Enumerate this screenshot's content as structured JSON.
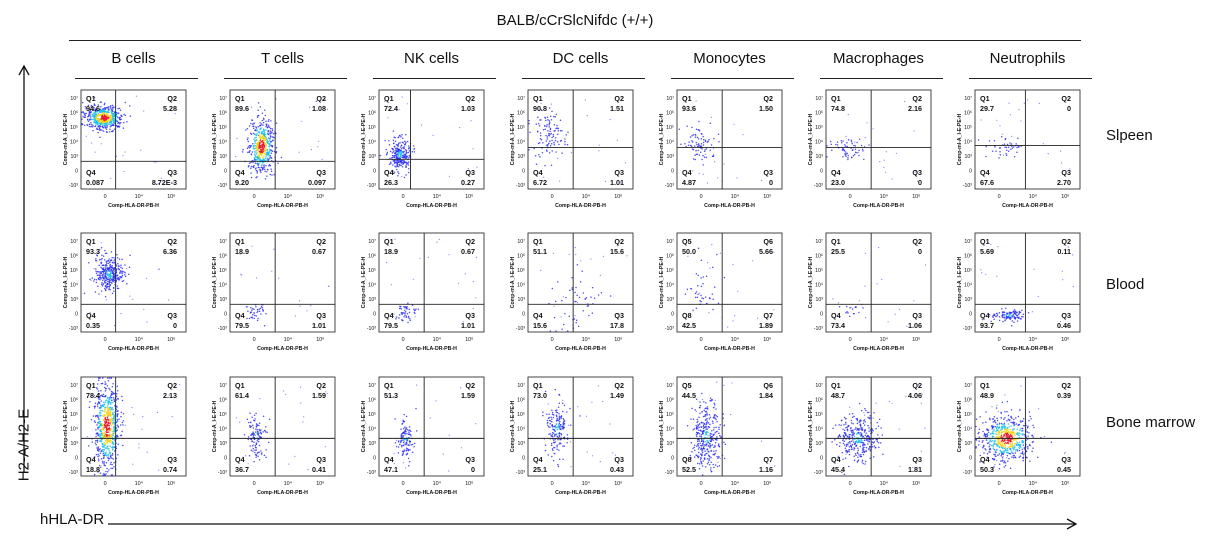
{
  "figure": {
    "strain": "BALB/cCrSlcNifdc (+/+)",
    "y_axis_label": "H2-A/H2-E",
    "x_axis_label": "hHLA-DR",
    "panel_y_channel": "Comp-mI-A_I-E-PE-H",
    "panel_x_channel": "Comp-HLA-DR-PB-H",
    "x_ticks": [
      "0",
      "10⁴",
      "10⁶"
    ],
    "y_ticks": [
      "10⁷",
      "10⁶",
      "10⁵",
      "10⁴",
      "10³",
      "0",
      "-10³"
    ],
    "colors": {
      "dense": "#e8142a",
      "mid": "#f5d310",
      "low": "#18c0e8",
      "sparse": "#2a2ef0"
    }
  },
  "chart_data": {
    "type": "scatter",
    "description_kind": "flow cytometry quadrant dot plots",
    "columns": [
      "B cells",
      "T cells",
      "NK cells",
      "DC cells",
      "Monocytes",
      "Macrophages",
      "Neutrophils"
    ],
    "rows": [
      "Slpeen",
      "Blood",
      "Bone marrow"
    ],
    "panels": [
      [
        {
          "quads": {
            "tl": [
              "Q1",
              "94.6"
            ],
            "tr": [
              "Q2",
              "5.28"
            ],
            "bl": [
              "Q4",
              "0.087"
            ],
            "br": [
              "Q3",
              "8.72E-3"
            ]
          },
          "gate": [
            0.33,
            0.72
          ],
          "cloud": {
            "cx": 0.22,
            "cy": 0.28,
            "sx": 0.09,
            "sy": 0.06,
            "n": 520,
            "density": "high"
          }
        },
        {
          "quads": {
            "tl": [
              "Q1",
              "89.6"
            ],
            "tr": [
              "Q2",
              "1.08"
            ],
            "bl": [
              "Q4",
              "9.20"
            ],
            "br": [
              "Q3",
              "0.097"
            ]
          },
          "gate": [
            0.43,
            0.72
          ],
          "cloud": {
            "cx": 0.3,
            "cy": 0.57,
            "sx": 0.06,
            "sy": 0.14,
            "n": 520,
            "density": "high"
          }
        },
        {
          "quads": {
            "tl": [
              "Q1",
              "72.4"
            ],
            "tr": [
              "Q2",
              "1.03"
            ],
            "bl": [
              "Q4",
              "26.3"
            ],
            "br": [
              "Q3",
              "0.27"
            ]
          },
          "gate": [
            0.3,
            0.7
          ],
          "cloud": {
            "cx": 0.2,
            "cy": 0.65,
            "sx": 0.05,
            "sy": 0.08,
            "n": 260,
            "density": "mid"
          }
        },
        {
          "quads": {
            "tl": [
              "Q1",
              "90.8"
            ],
            "tr": [
              "Q2",
              "1.51"
            ],
            "bl": [
              "Q4",
              "6.72"
            ],
            "br": [
              "Q3",
              "1.01"
            ]
          },
          "gate": [
            0.43,
            0.58
          ],
          "cloud": {
            "cx": 0.2,
            "cy": 0.45,
            "sx": 0.08,
            "sy": 0.12,
            "n": 110,
            "density": "low"
          }
        },
        {
          "quads": {
            "tl": [
              "Q1",
              "93.6"
            ],
            "tr": [
              "Q2",
              "1.50"
            ],
            "bl": [
              "Q4",
              "4.87"
            ],
            "br": [
              "Q3",
              "0"
            ]
          },
          "gate": [
            0.43,
            0.58
          ],
          "cloud": {
            "cx": 0.2,
            "cy": 0.55,
            "sx": 0.07,
            "sy": 0.1,
            "n": 80,
            "density": "low"
          }
        },
        {
          "quads": {
            "tl": [
              "Q1",
              "74.8"
            ],
            "tr": [
              "Q2",
              "2.16"
            ],
            "bl": [
              "Q4",
              "23.0"
            ],
            "br": [
              "Q3",
              "0"
            ]
          },
          "gate": [
            0.43,
            0.58
          ],
          "cloud": {
            "cx": 0.2,
            "cy": 0.58,
            "sx": 0.08,
            "sy": 0.06,
            "n": 60,
            "density": "low"
          }
        },
        {
          "quads": {
            "tl": [
              "Q1",
              "29.7"
            ],
            "tr": [
              "Q2",
              "0"
            ],
            "bl": [
              "Q4",
              "67.6"
            ],
            "br": [
              "Q3",
              "2.70"
            ]
          },
          "gate": [
            0.48,
            0.56
          ],
          "cloud": {
            "cx": 0.3,
            "cy": 0.58,
            "sx": 0.08,
            "sy": 0.05,
            "n": 45,
            "density": "low"
          }
        }
      ],
      [
        {
          "quads": {
            "tl": [
              "Q1",
              "93.3"
            ],
            "tr": [
              "Q2",
              "6.36"
            ],
            "bl": [
              "Q4",
              "0.35"
            ],
            "br": [
              "Q3",
              "0"
            ]
          },
          "gate": [
            0.33,
            0.72
          ],
          "cloud": {
            "cx": 0.27,
            "cy": 0.42,
            "sx": 0.07,
            "sy": 0.09,
            "n": 330,
            "density": "mid"
          }
        },
        {
          "quads": {
            "tl": [
              "Q1",
              "18.9"
            ],
            "tr": [
              "Q2",
              "0.67"
            ],
            "bl": [
              "Q4",
              "79.5"
            ],
            "br": [
              "Q3",
              "1.01"
            ]
          },
          "gate": [
            0.43,
            0.72
          ],
          "cloud": {
            "cx": 0.25,
            "cy": 0.8,
            "sx": 0.05,
            "sy": 0.05,
            "n": 40,
            "density": "low"
          }
        },
        {
          "quads": {
            "tl": [
              "Q1",
              "18.9"
            ],
            "tr": [
              "Q2",
              "0.67"
            ],
            "bl": [
              "Q4",
              "79.5"
            ],
            "br": [
              "Q3",
              "1.01"
            ]
          },
          "gate": [
            0.43,
            0.72
          ],
          "cloud": {
            "cx": 0.25,
            "cy": 0.8,
            "sx": 0.05,
            "sy": 0.05,
            "n": 50,
            "density": "low"
          }
        },
        {
          "quads": {
            "tl": [
              "Q1",
              "51.1"
            ],
            "tr": [
              "Q2",
              "15.6"
            ],
            "bl": [
              "Q4",
              "15.6"
            ],
            "br": [
              "Q3",
              "17.8"
            ]
          },
          "gate": [
            0.43,
            0.72
          ],
          "cloud": {
            "cx": 0.45,
            "cy": 0.7,
            "sx": 0.12,
            "sy": 0.15,
            "n": 50,
            "density": "low"
          }
        },
        {
          "quads": {
            "tl": [
              "Q5",
              "50.0"
            ],
            "tr": [
              "Q6",
              "5.66"
            ],
            "bl": [
              "Q8",
              "42.5"
            ],
            "br": [
              "Q7",
              "1.89"
            ]
          },
          "gate": [
            0.43,
            0.72
          ],
          "cloud": {
            "cx": 0.22,
            "cy": 0.6,
            "sx": 0.07,
            "sy": 0.15,
            "n": 40,
            "density": "low"
          }
        },
        {
          "quads": {
            "tl": [
              "Q1",
              "25.5"
            ],
            "tr": [
              "Q2",
              "0"
            ],
            "bl": [
              "Q4",
              "73.4"
            ],
            "br": [
              "Q3",
              "1.06"
            ]
          },
          "gate": [
            0.43,
            0.72
          ],
          "cloud": {
            "cx": 0.25,
            "cy": 0.78,
            "sx": 0.06,
            "sy": 0.04,
            "n": 15,
            "density": "low"
          }
        },
        {
          "quads": {
            "tl": [
              "Q1",
              "5.69"
            ],
            "tr": [
              "Q2",
              "0.11"
            ],
            "bl": [
              "Q4",
              "93.7"
            ],
            "br": [
              "Q3",
              "0.46"
            ]
          },
          "gate": [
            0.48,
            0.72
          ],
          "cloud": {
            "cx": 0.32,
            "cy": 0.83,
            "sx": 0.08,
            "sy": 0.03,
            "n": 110,
            "density": "mid"
          }
        }
      ],
      [
        {
          "quads": {
            "tl": [
              "Q1",
              "78.4"
            ],
            "tr": [
              "Q2",
              "2.13"
            ],
            "bl": [
              "Q4",
              "18.8"
            ],
            "br": [
              "Q3",
              "0.74"
            ]
          },
          "gate": [
            0.33,
            0.62
          ],
          "cloud": {
            "cx": 0.25,
            "cy": 0.5,
            "sx": 0.06,
            "sy": 0.22,
            "n": 650,
            "density": "high"
          }
        },
        {
          "quads": {
            "tl": [
              "Q1",
              "61.4"
            ],
            "tr": [
              "Q2",
              "1.59"
            ],
            "bl": [
              "Q4",
              "36.7"
            ],
            "br": [
              "Q3",
              "0.41"
            ]
          },
          "gate": [
            0.43,
            0.62
          ],
          "cloud": {
            "cx": 0.25,
            "cy": 0.6,
            "sx": 0.04,
            "sy": 0.1,
            "n": 120,
            "density": "mid"
          }
        },
        {
          "quads": {
            "tl": [
              "Q1",
              "51.3"
            ],
            "tr": [
              "Q2",
              "1.59"
            ],
            "bl": [
              "Q4",
              "47.1"
            ],
            "br": [
              "Q3",
              "0"
            ]
          },
          "gate": [
            0.43,
            0.62
          ],
          "cloud": {
            "cx": 0.25,
            "cy": 0.62,
            "sx": 0.04,
            "sy": 0.1,
            "n": 120,
            "density": "mid"
          }
        },
        {
          "quads": {
            "tl": [
              "Q1",
              "73.0"
            ],
            "tr": [
              "Q2",
              "1.49"
            ],
            "bl": [
              "Q4",
              "25.1"
            ],
            "br": [
              "Q3",
              "0.43"
            ]
          },
          "gate": [
            0.43,
            0.62
          ],
          "cloud": {
            "cx": 0.28,
            "cy": 0.52,
            "sx": 0.05,
            "sy": 0.14,
            "n": 180,
            "density": "mid"
          }
        },
        {
          "quads": {
            "tl": [
              "Q5",
              "44.5"
            ],
            "tr": [
              "Q6",
              "1.84"
            ],
            "bl": [
              "Q8",
              "52.5"
            ],
            "br": [
              "Q7",
              "1.16"
            ]
          },
          "gate": [
            0.43,
            0.62
          ],
          "cloud": {
            "cx": 0.28,
            "cy": 0.6,
            "sx": 0.07,
            "sy": 0.16,
            "n": 320,
            "density": "mid"
          }
        },
        {
          "quads": {
            "tl": [
              "Q1",
              "48.7"
            ],
            "tr": [
              "Q2",
              "4.06"
            ],
            "bl": [
              "Q4",
              "45.4"
            ],
            "br": [
              "Q3",
              "1.81"
            ]
          },
          "gate": [
            0.43,
            0.62
          ],
          "cloud": {
            "cx": 0.3,
            "cy": 0.62,
            "sx": 0.1,
            "sy": 0.12,
            "n": 330,
            "density": "mid"
          }
        },
        {
          "quads": {
            "tl": [
              "Q1",
              "48.9"
            ],
            "tr": [
              "Q2",
              "0.39"
            ],
            "bl": [
              "Q4",
              "50.3"
            ],
            "br": [
              "Q3",
              "0.45"
            ]
          },
          "gate": [
            0.48,
            0.62
          ],
          "cloud": {
            "cx": 0.3,
            "cy": 0.62,
            "sx": 0.12,
            "sy": 0.11,
            "n": 600,
            "density": "high"
          }
        }
      ]
    ]
  }
}
